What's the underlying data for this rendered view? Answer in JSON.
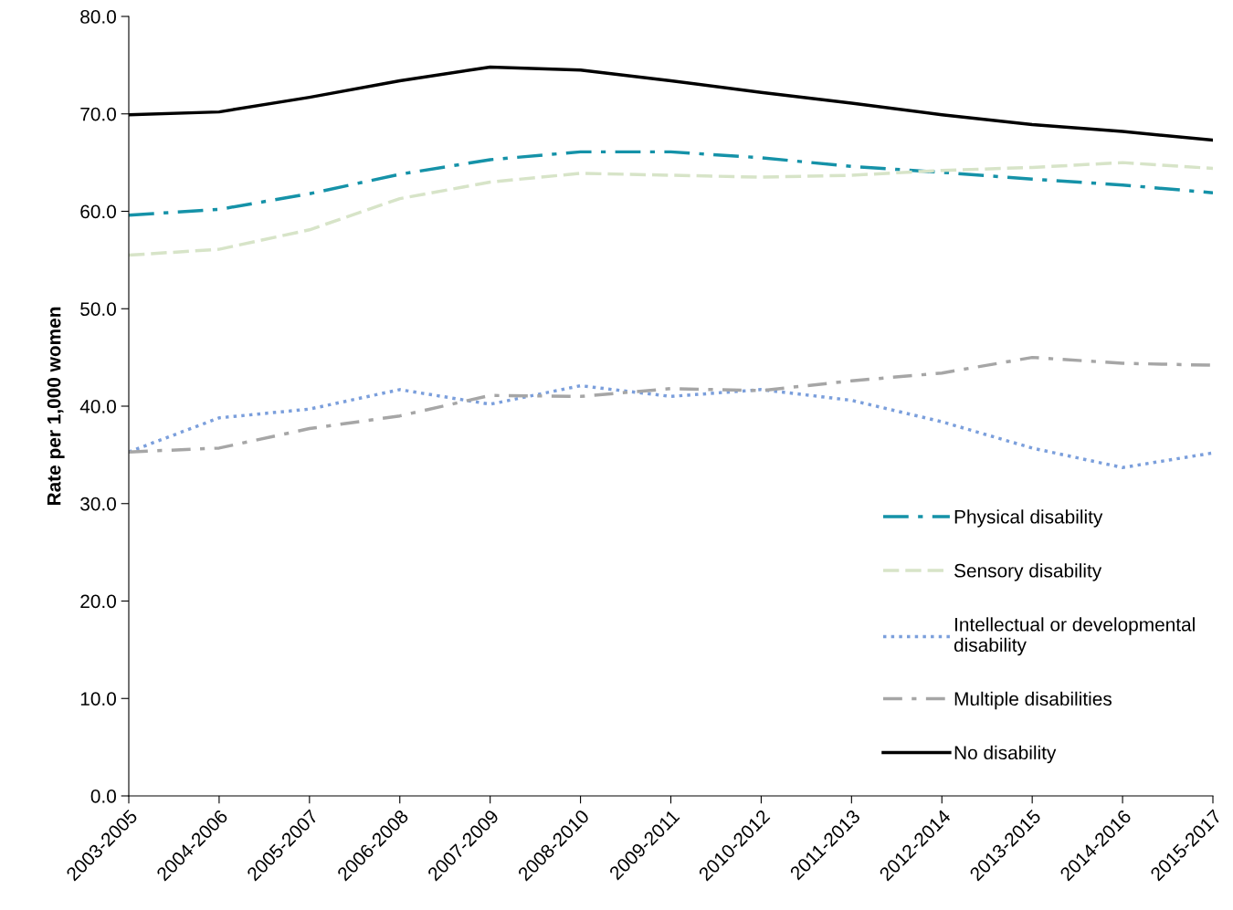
{
  "chart_data": {
    "type": "line",
    "ylabel": "Rate per 1,000 women",
    "categories": [
      "2003-2005",
      "2004-2006",
      "2005-2007",
      "2006-2008",
      "2007-2009",
      "2008-2010",
      "2009-2011",
      "2010-2012",
      "2011-2013",
      "2012-2014",
      "2013-2015",
      "2014-2016",
      "2015-2017"
    ],
    "series": [
      {
        "name": "Physical disability",
        "color": "#1592a8",
        "line_style": "dashdot",
        "values": [
          59.6,
          60.2,
          61.8,
          63.8,
          65.3,
          66.1,
          66.1,
          65.5,
          64.6,
          64.0,
          63.3,
          62.7,
          61.9
        ]
      },
      {
        "name": "Sensory disability",
        "color": "#d7e4c8",
        "line_style": "dashed",
        "values": [
          55.5,
          56.1,
          58.1,
          61.3,
          63.0,
          63.9,
          63.7,
          63.5,
          63.7,
          64.2,
          64.5,
          65.0,
          64.4
        ]
      },
      {
        "name": "Intellectual or developmental disability",
        "color": "#7b9fdc",
        "line_style": "dotted",
        "values": [
          35.3,
          38.8,
          39.7,
          41.7,
          40.2,
          42.1,
          41.0,
          41.7,
          40.6,
          38.4,
          35.7,
          33.7,
          35.2
        ]
      },
      {
        "name": "Multiple disabilities",
        "color": "#a6a6a6",
        "line_style": "longdashdot",
        "values": [
          35.3,
          35.7,
          37.7,
          39.0,
          41.1,
          41.0,
          41.8,
          41.6,
          42.6,
          43.4,
          45.0,
          44.4,
          44.2
        ]
      },
      {
        "name": "No disability",
        "color": "#000000",
        "line_style": "solid",
        "values": [
          69.9,
          70.2,
          71.7,
          73.4,
          74.8,
          74.5,
          73.4,
          72.2,
          71.1,
          69.9,
          68.9,
          68.2,
          67.3
        ]
      }
    ],
    "ylim": [
      0,
      80
    ],
    "yticks": [
      {
        "value": 0,
        "label": "0.0"
      },
      {
        "value": 10,
        "label": "10.0"
      },
      {
        "value": 20,
        "label": "20.0"
      },
      {
        "value": 30,
        "label": "30.0"
      },
      {
        "value": 40,
        "label": "40.0"
      },
      {
        "value": 50,
        "label": "50.0"
      },
      {
        "value": 60,
        "label": "60.0"
      },
      {
        "value": 70,
        "label": "70.0"
      },
      {
        "value": 80,
        "label": "80.0"
      }
    ],
    "grid": false,
    "legend": "bottom right",
    "marker": "none"
  }
}
